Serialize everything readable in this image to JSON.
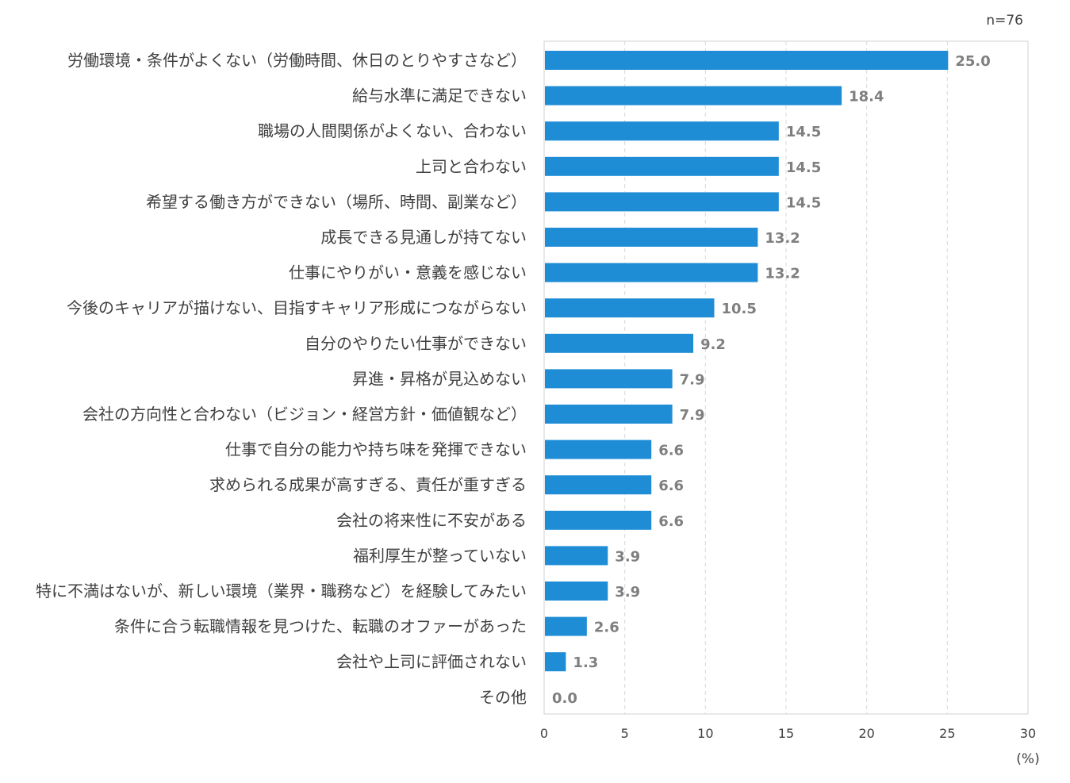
{
  "chart_data": {
    "type": "bar",
    "orientation": "horizontal",
    "sample_size": "n=76",
    "unit_label": "(%)",
    "xlim": [
      0,
      30
    ],
    "xticks": [
      "0",
      "5",
      "10",
      "15",
      "20",
      "25",
      "30"
    ],
    "grid": "vertical-dashed",
    "bar_color": "#1f8dd6",
    "categories": [
      "労働環境・条件がよくない（労働時間、休日のとりやすさなど）",
      "給与水準に満足できない",
      "職場の人間関係がよくない、合わない",
      "上司と合わない",
      "希望する働き方ができない（場所、時間、副業など）",
      "成長できる見通しが持てない",
      "仕事にやりがい・意義を感じない",
      "今後のキャリアが描けない、目指すキャリア形成につながらない",
      "自分のやりたい仕事ができない",
      "昇進・昇格が見込めない",
      "会社の方向性と合わない（ビジョン・経営方針・価値観など）",
      "仕事で自分の能力や持ち味を発揮できない",
      "求められる成果が高すぎる、責任が重すぎる",
      "会社の将来性に不安がある",
      "福利厚生が整っていない",
      "特に不満はないが、新しい環境（業界・職務など）を経験してみたい",
      "条件に合う転職情報を見つけた、転職のオファーがあった",
      "会社や上司に評価されない",
      "その他"
    ],
    "values": [
      25.0,
      18.4,
      14.5,
      14.5,
      14.5,
      13.2,
      13.2,
      10.5,
      9.2,
      7.9,
      7.9,
      6.6,
      6.6,
      6.6,
      3.9,
      3.9,
      2.6,
      1.3,
      0.0
    ],
    "value_labels": [
      "25.0",
      "18.4",
      "14.5",
      "14.5",
      "14.5",
      "13.2",
      "13.2",
      "10.5",
      "9.2",
      "7.9",
      "7.9",
      "6.6",
      "6.6",
      "6.6",
      "3.9",
      "3.9",
      "2.6",
      "1.3",
      "0.0"
    ]
  }
}
